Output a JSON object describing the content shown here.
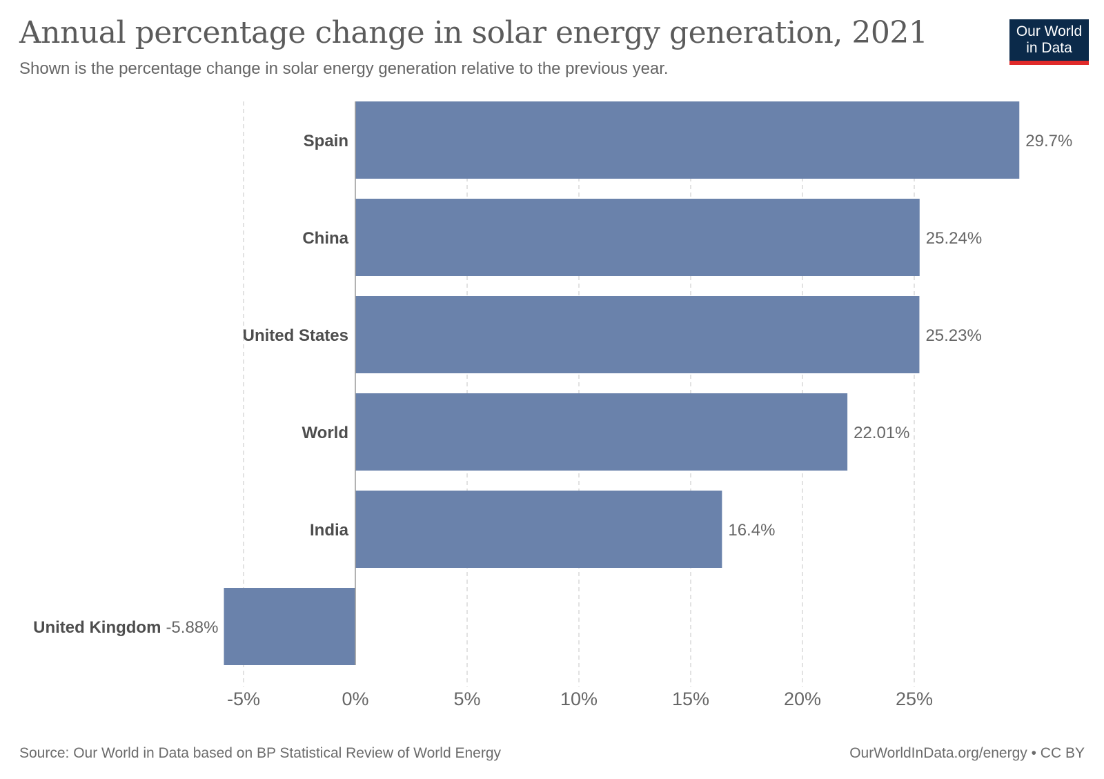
{
  "header": {
    "title": "Annual percentage change in solar energy generation, 2021",
    "subtitle": "Shown is the percentage change in solar energy generation relative to the previous year."
  },
  "logo": {
    "line1": "Our World",
    "line2": "in Data",
    "bg_color": "#0b2a4a",
    "accent_color": "#e02a2a"
  },
  "footer": {
    "source": "Source: Our World in Data based on BP Statistical Review of World Energy",
    "credit": "OurWorldInData.org/energy • CC BY"
  },
  "chart_data": {
    "type": "bar",
    "orientation": "horizontal",
    "categories": [
      "Spain",
      "China",
      "United States",
      "World",
      "India",
      "United Kingdom"
    ],
    "values": [
      29.7,
      25.24,
      25.23,
      22.01,
      16.4,
      -5.88
    ],
    "value_labels": [
      "29.7%",
      "25.24%",
      "25.23%",
      "22.01%",
      "16.4%",
      "-5.88%"
    ],
    "ticks": [
      -5,
      0,
      5,
      10,
      15,
      20,
      25
    ],
    "tick_labels": [
      "-5%",
      "0%",
      "5%",
      "10%",
      "15%",
      "20%",
      "25%"
    ],
    "xlim": [
      -5.88,
      29.7
    ],
    "grid": true,
    "bar_color": "#6a82ab"
  }
}
